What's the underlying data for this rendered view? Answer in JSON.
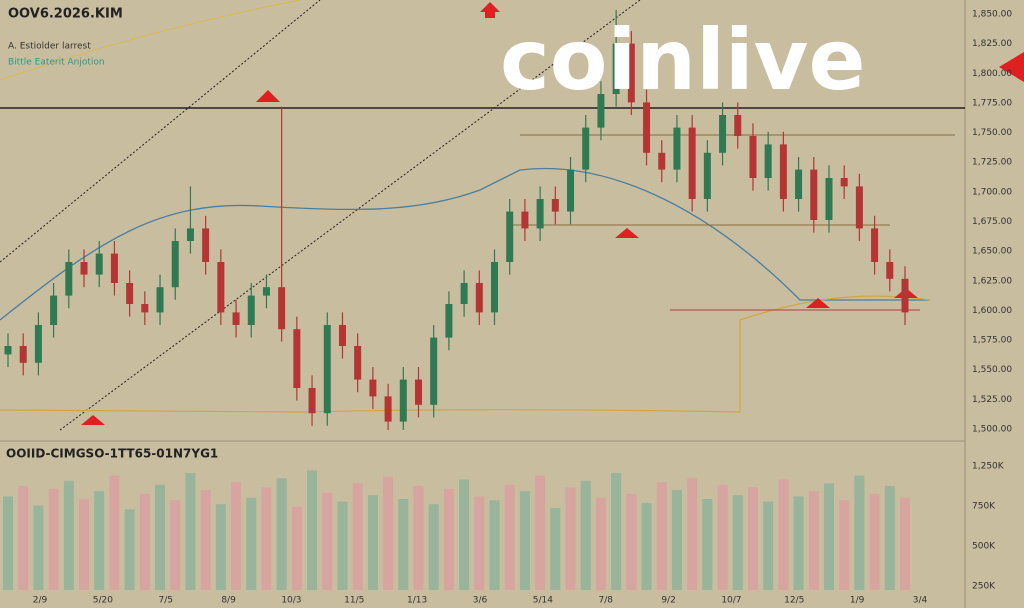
{
  "chart_data": {
    "type": "candlestick",
    "title": "OOV6.2026.KIM",
    "subtitle": "A. Estiolder larrest",
    "legend_text": "Bittle Eaterit Anjotion",
    "watermark": "coinlive",
    "up_color": "#2f7a52",
    "down_color": "#b53434",
    "open": [
      18,
      20,
      16,
      25,
      32,
      40,
      37,
      42,
      35,
      30,
      28,
      34,
      45,
      48,
      40,
      28,
      25,
      32,
      34,
      24,
      10,
      4,
      25,
      20,
      12,
      8,
      2,
      12,
      6,
      22,
      30,
      35,
      28,
      40,
      52,
      48,
      55,
      52,
      62,
      72,
      80,
      92,
      78,
      66,
      62,
      72,
      55,
      66,
      75,
      70,
      60,
      68,
      55,
      62,
      50,
      60,
      58,
      48,
      40,
      36
    ],
    "high": [
      23,
      23,
      28,
      35,
      43,
      43,
      45,
      45,
      38,
      33,
      37,
      48,
      58,
      51,
      43,
      31,
      35,
      37,
      77,
      27,
      13,
      28,
      28,
      23,
      15,
      11,
      15,
      15,
      25,
      33,
      38,
      38,
      43,
      55,
      55,
      58,
      58,
      65,
      75,
      83,
      100,
      95,
      81,
      69,
      75,
      75,
      69,
      78,
      78,
      73,
      71,
      71,
      65,
      65,
      63,
      63,
      61,
      51,
      43,
      39
    ],
    "low": [
      15,
      13,
      13,
      22,
      29,
      34,
      34,
      32,
      27,
      25,
      25,
      31,
      42,
      37,
      25,
      22,
      22,
      29,
      21,
      7,
      1,
      1,
      17,
      9,
      5,
      0,
      0,
      3,
      3,
      19,
      27,
      25,
      25,
      37,
      45,
      45,
      49,
      49,
      59,
      69,
      77,
      75,
      63,
      59,
      59,
      52,
      52,
      63,
      67,
      57,
      57,
      52,
      52,
      47,
      47,
      55,
      45,
      37,
      33,
      25
    ],
    "close": [
      20,
      16,
      25,
      32,
      40,
      37,
      42,
      35,
      30,
      28,
      34,
      45,
      48,
      40,
      28,
      25,
      32,
      34,
      24,
      10,
      4,
      25,
      20,
      12,
      8,
      2,
      12,
      6,
      22,
      30,
      35,
      28,
      40,
      52,
      48,
      55,
      52,
      62,
      72,
      80,
      92,
      78,
      66,
      62,
      72,
      55,
      66,
      75,
      70,
      60,
      68,
      55,
      62,
      50,
      60,
      58,
      48,
      40,
      36,
      28
    ],
    "ylim": [
      0,
      100
    ],
    "price_labels": [
      "1,850.00",
      "1,825.00",
      "1,800.00",
      "1,775.00",
      "1,750.00",
      "1,725.00",
      "1,700.00",
      "1,675.00",
      "1,650.00",
      "1,625.00",
      "1,600.00",
      "1,575.00",
      "1,550.00",
      "1,525.00",
      "1,500.00"
    ],
    "volume": {
      "title": "OOIID-CIMGSO-1TT65-01N7YG1",
      "values": [
        72,
        80,
        65,
        78,
        84,
        70,
        76,
        88,
        62,
        74,
        81,
        69,
        90,
        77,
        66,
        83,
        71,
        79,
        86,
        64,
        92,
        75,
        68,
        82,
        73,
        87,
        70,
        80,
        66,
        78,
        85,
        72,
        69,
        81,
        76,
        88,
        63,
        79,
        84,
        71,
        90,
        74,
        67,
        83,
        77,
        86,
        70,
        81,
        73,
        79,
        68,
        85,
        72,
        76,
        82,
        69,
        88,
        74,
        80,
        71
      ],
      "ylim": [
        0,
        100
      ],
      "labels": [
        "1,250K",
        "750K",
        "500K",
        "250K"
      ]
    },
    "x_labels": [
      "2/9",
      "5/20",
      "7/5",
      "8/9",
      "10/3",
      "11/5",
      "1/13",
      "3/6",
      "5/14",
      "7/8",
      "9/2",
      "10/7",
      "12/5",
      "1/9",
      "3/4"
    ]
  }
}
